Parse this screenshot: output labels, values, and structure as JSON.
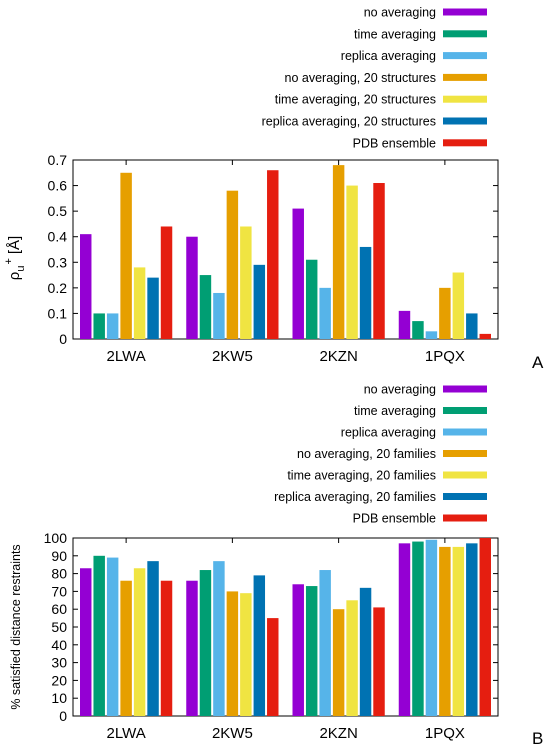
{
  "chart_data": [
    {
      "type": "bar",
      "panel_label": "A",
      "ylabel": "ρu⁺ [Å]",
      "ylabel_main": "ρ",
      "ylabel_sub": "u",
      "ylabel_sup": "+",
      "ylabel_unit": "[Å]",
      "ylim": [
        0,
        0.7
      ],
      "yticks": [
        "0",
        "0.1",
        "0.2",
        "0.3",
        "0.4",
        "0.5",
        "0.6",
        "0.7"
      ],
      "grid": false,
      "legend_position": "top-right",
      "categories": [
        "2LWA",
        "2KW5",
        "2KZN",
        "1PQX"
      ],
      "series": [
        {
          "name": "no averaging",
          "color": "#9400d3",
          "values": [
            0.41,
            0.4,
            0.51,
            0.11
          ]
        },
        {
          "name": "time averaging",
          "color": "#009e73",
          "values": [
            0.1,
            0.25,
            0.31,
            0.07
          ]
        },
        {
          "name": "replica averaging",
          "color": "#56b4e9",
          "values": [
            0.1,
            0.18,
            0.2,
            0.03
          ]
        },
        {
          "name": "no averaging, 20 structures",
          "color": "#e69f00",
          "values": [
            0.65,
            0.58,
            0.68,
            0.2
          ]
        },
        {
          "name": "time averaging, 20 structures",
          "color": "#f0e442",
          "values": [
            0.28,
            0.44,
            0.6,
            0.26
          ]
        },
        {
          "name": "replica averaging, 20 structures",
          "color": "#0072b2",
          "values": [
            0.24,
            0.29,
            0.36,
            0.1
          ]
        },
        {
          "name": "PDB ensemble",
          "color": "#e51e10",
          "values": [
            0.44,
            0.66,
            0.61,
            0.02
          ]
        }
      ]
    },
    {
      "type": "bar",
      "panel_label": "B",
      "ylabel": "% satisfied distance restraints",
      "ylim": [
        0,
        100
      ],
      "yticks": [
        "0",
        "10",
        "20",
        "30",
        "40",
        "50",
        "60",
        "70",
        "80",
        "90",
        "100"
      ],
      "grid": false,
      "legend_position": "top-right",
      "categories": [
        "2LWA",
        "2KW5",
        "2KZN",
        "1PQX"
      ],
      "series": [
        {
          "name": "no averaging",
          "color": "#9400d3",
          "values": [
            83,
            76,
            74,
            97
          ]
        },
        {
          "name": "time averaging",
          "color": "#009e73",
          "values": [
            90,
            82,
            73,
            98
          ]
        },
        {
          "name": "replica averaging",
          "color": "#56b4e9",
          "values": [
            89,
            87,
            82,
            99
          ]
        },
        {
          "name": "no averaging, 20 families",
          "color": "#e69f00",
          "values": [
            76,
            70,
            60,
            95
          ]
        },
        {
          "name": "time averaging, 20 families",
          "color": "#f0e442",
          "values": [
            83,
            69,
            65,
            95
          ]
        },
        {
          "name": "replica averaging, 20 families",
          "color": "#0072b2",
          "values": [
            87,
            79,
            72,
            97
          ]
        },
        {
          "name": "PDB ensemble",
          "color": "#e51e10",
          "values": [
            76,
            55,
            61,
            100
          ]
        }
      ]
    }
  ]
}
